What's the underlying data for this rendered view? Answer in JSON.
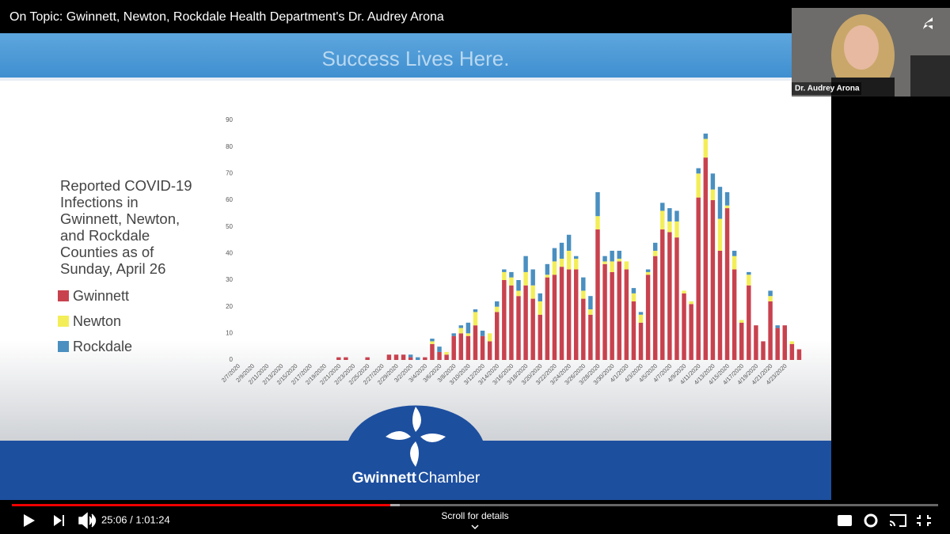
{
  "player": {
    "video_title": "On Topic: Gwinnett, Newton, Rockdale Health Department's Dr. Audrey Arona",
    "webcam_name": "Dr. Audrey Arona",
    "time": "25:06 / 1:01:24",
    "scroll_hint": "Scroll for details"
  },
  "slide": {
    "banner": "Success Lives Here.",
    "heading": "Reported COVID-19 Infections in Gwinnett, Newton, and Rockdale Counties as of Sunday, April 26",
    "logo_bold": "Gwinnett",
    "logo_regular": "Chamber"
  },
  "chart_data": {
    "type": "stacked_bar",
    "categories": [
      "2/7/2020",
      null,
      "2/9/2020",
      null,
      "2/11/2020",
      null,
      "2/13/2020",
      null,
      "2/15/2020",
      null,
      "2/17/2020",
      null,
      "2/19/2020",
      null,
      "2/21/2020",
      null,
      "2/23/2020",
      null,
      "2/25/2020",
      null,
      "2/27/2020",
      null,
      "2/29/2020",
      null,
      "3/2/2020",
      null,
      "3/4/2020",
      null,
      "3/6/2020",
      null,
      "3/8/2020",
      null,
      "3/10/2020",
      null,
      "3/12/2020",
      null,
      "3/14/2020",
      null,
      "3/16/2020",
      null,
      "3/18/2020",
      null,
      "3/20/2020",
      null,
      "3/22/2020",
      null,
      "3/24/2020",
      null,
      "3/26/2020",
      null,
      "3/28/2020",
      null,
      "3/30/2020",
      null,
      "4/1/2020",
      null,
      "4/3/2020",
      null,
      "4/5/2020",
      null,
      "4/7/2020",
      null,
      "4/9/2020",
      null,
      "4/11/2020",
      null,
      "4/13/2020",
      null,
      "4/15/2020",
      null,
      "4/17/2020",
      null,
      "4/19/2020",
      null,
      "4/21/2020",
      null,
      "4/23/2020",
      null,
      null
    ],
    "series": [
      {
        "name": "Gwinnett",
        "color": "#c8424e",
        "values": [
          0,
          0,
          0,
          0,
          0,
          0,
          0,
          0,
          0,
          0,
          0,
          0,
          0,
          0,
          1,
          1,
          0,
          0,
          1,
          0,
          0,
          2,
          2,
          2,
          1,
          0,
          1,
          6,
          3,
          2,
          9,
          10,
          9,
          13,
          9,
          7,
          18,
          30,
          28,
          24,
          28,
          23,
          17,
          31,
          32,
          35,
          34,
          34,
          23,
          17,
          49,
          36,
          33,
          37,
          34,
          22,
          14,
          32,
          39,
          49,
          48,
          46,
          25,
          21,
          61,
          76,
          60,
          41,
          57,
          34,
          14,
          28,
          13,
          7,
          22,
          12,
          13,
          6,
          4
        ]
      },
      {
        "name": "Newton",
        "color": "#f3ee58",
        "values": [
          0,
          0,
          0,
          0,
          0,
          0,
          0,
          0,
          0,
          0,
          0,
          0,
          0,
          0,
          0,
          0,
          0,
          0,
          0,
          0,
          0,
          0,
          0,
          0,
          0,
          0,
          0,
          1,
          0,
          1,
          0,
          2,
          1,
          5,
          0,
          3,
          2,
          3,
          3,
          2,
          5,
          5,
          5,
          1,
          5,
          3,
          7,
          4,
          3,
          2,
          5,
          1,
          4,
          1,
          3,
          3,
          3,
          1,
          2,
          7,
          4,
          6,
          1,
          1,
          9,
          7,
          4,
          12,
          1,
          5,
          1,
          4,
          0,
          0,
          2,
          0,
          0,
          1,
          0
        ]
      },
      {
        "name": "Rockdale",
        "color": "#4a8fc0",
        "values": [
          0,
          0,
          0,
          0,
          0,
          0,
          0,
          0,
          0,
          0,
          0,
          0,
          0,
          0,
          0,
          0,
          0,
          0,
          0,
          0,
          0,
          0,
          0,
          0,
          1,
          1,
          0,
          1,
          2,
          0,
          1,
          1,
          4,
          1,
          2,
          0,
          2,
          1,
          2,
          4,
          6,
          6,
          3,
          4,
          5,
          6,
          6,
          1,
          5,
          5,
          9,
          2,
          4,
          3,
          0,
          2,
          1,
          1,
          3,
          3,
          5,
          4,
          0,
          0,
          2,
          2,
          6,
          12,
          5,
          2,
          0,
          1,
          0,
          0,
          2,
          1,
          0,
          0,
          0
        ]
      }
    ],
    "ylim": [
      0,
      90
    ],
    "yticks": [
      0,
      10,
      20,
      30,
      40,
      50,
      60,
      70,
      80,
      90
    ],
    "grid": false,
    "legend": "left"
  }
}
